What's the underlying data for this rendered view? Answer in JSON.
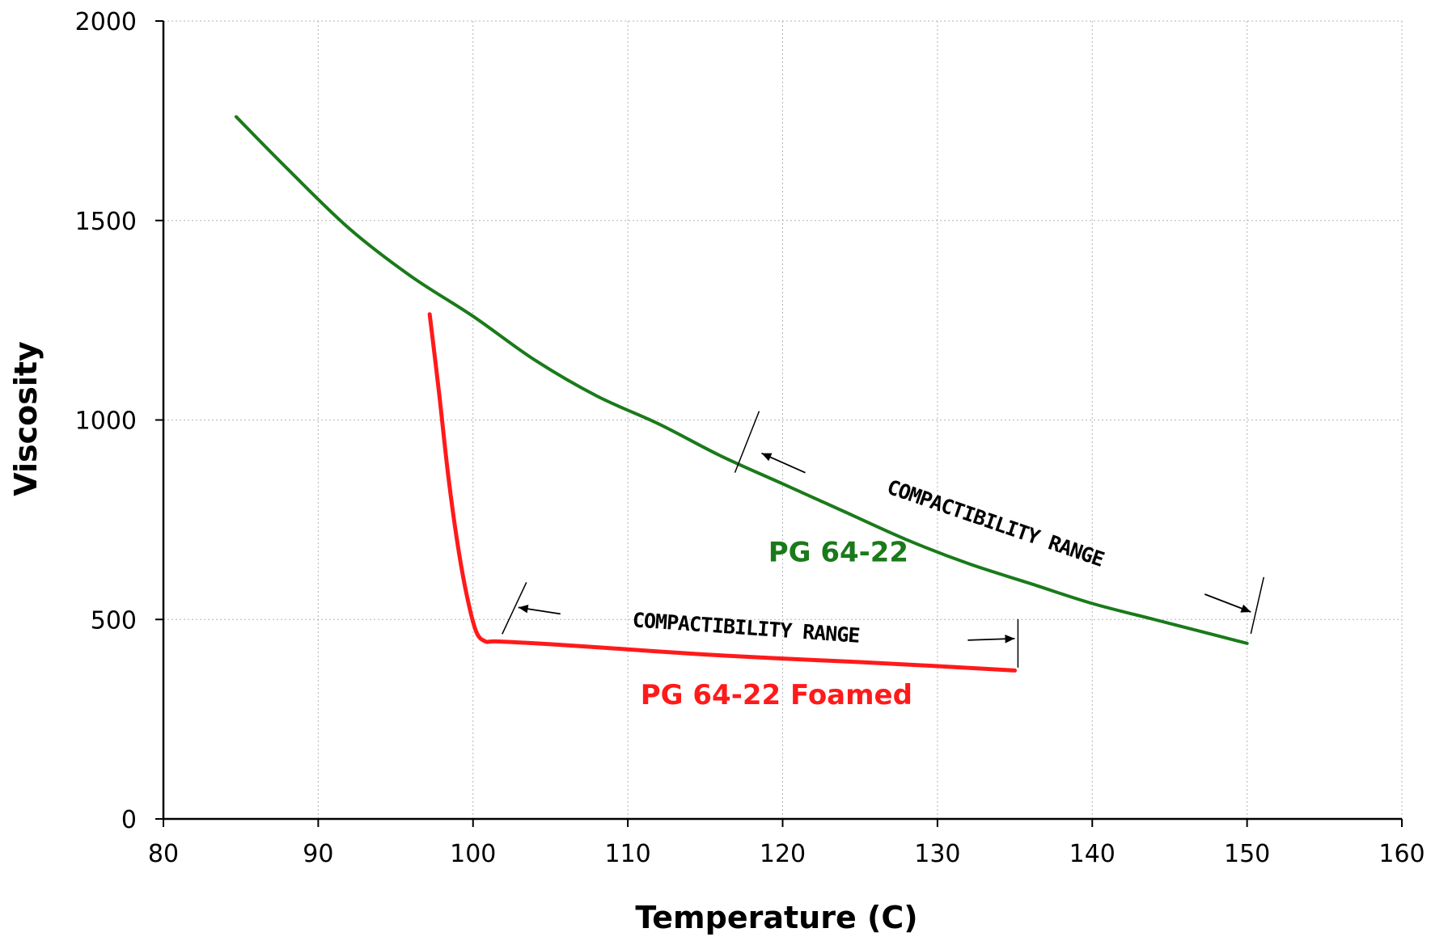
{
  "chart_data": {
    "type": "line",
    "title": "",
    "xlabel": "Temperature (C)",
    "ylabel": "Viscosity",
    "xlim": [
      80,
      160
    ],
    "ylim": [
      0,
      2000
    ],
    "xticks": [
      80,
      90,
      100,
      110,
      120,
      130,
      140,
      150,
      160
    ],
    "yticks": [
      0,
      500,
      1000,
      1500,
      2000
    ],
    "grid": true,
    "legend": "none",
    "series": [
      {
        "name": "PG 64-22",
        "color": "#1a7a1a",
        "x": [
          84.7,
          88,
          92,
          96,
          100,
          104,
          108,
          112,
          116,
          120,
          124,
          128,
          132,
          136,
          140,
          144,
          148,
          150
        ],
        "y": [
          1760,
          1630,
          1480,
          1360,
          1260,
          1150,
          1060,
          990,
          910,
          840,
          770,
          700,
          640,
          590,
          540,
          500,
          460,
          440
        ]
      },
      {
        "name": "PG 64-22  Foamed",
        "color": "#ff1a1a",
        "x": [
          97.2,
          97.8,
          98.4,
          99.0,
          99.6,
          100.2,
          100.8,
          101.5,
          105,
          110,
          115,
          120,
          125,
          130,
          135
        ],
        "y": [
          1265,
          1070,
          860,
          690,
          560,
          470,
          445,
          445,
          438,
          425,
          412,
          402,
          393,
          383,
          372
        ]
      }
    ],
    "annotations": [
      {
        "text": "PG 64-22",
        "color": "#1a7a1a",
        "x": 123.6,
        "y": 645
      },
      {
        "text": "PG 64-22  Foamed",
        "color": "#ff1a1a",
        "x": 119.6,
        "y": 288
      },
      {
        "text": "COMPACTIBILITY RANGE",
        "x": 133.6,
        "y": 725,
        "angle": 19
      },
      {
        "text": "COMPACTIBILITY RANGE",
        "x": 117.6,
        "y": 462,
        "angle": 4
      }
    ],
    "range_markers": [
      {
        "x1": 117.7,
        "x2": 150.4,
        "y1": 945,
        "y2": 535
      },
      {
        "x1": 102.3,
        "x2": 135.2,
        "y1": 520,
        "y2": 440
      }
    ]
  }
}
